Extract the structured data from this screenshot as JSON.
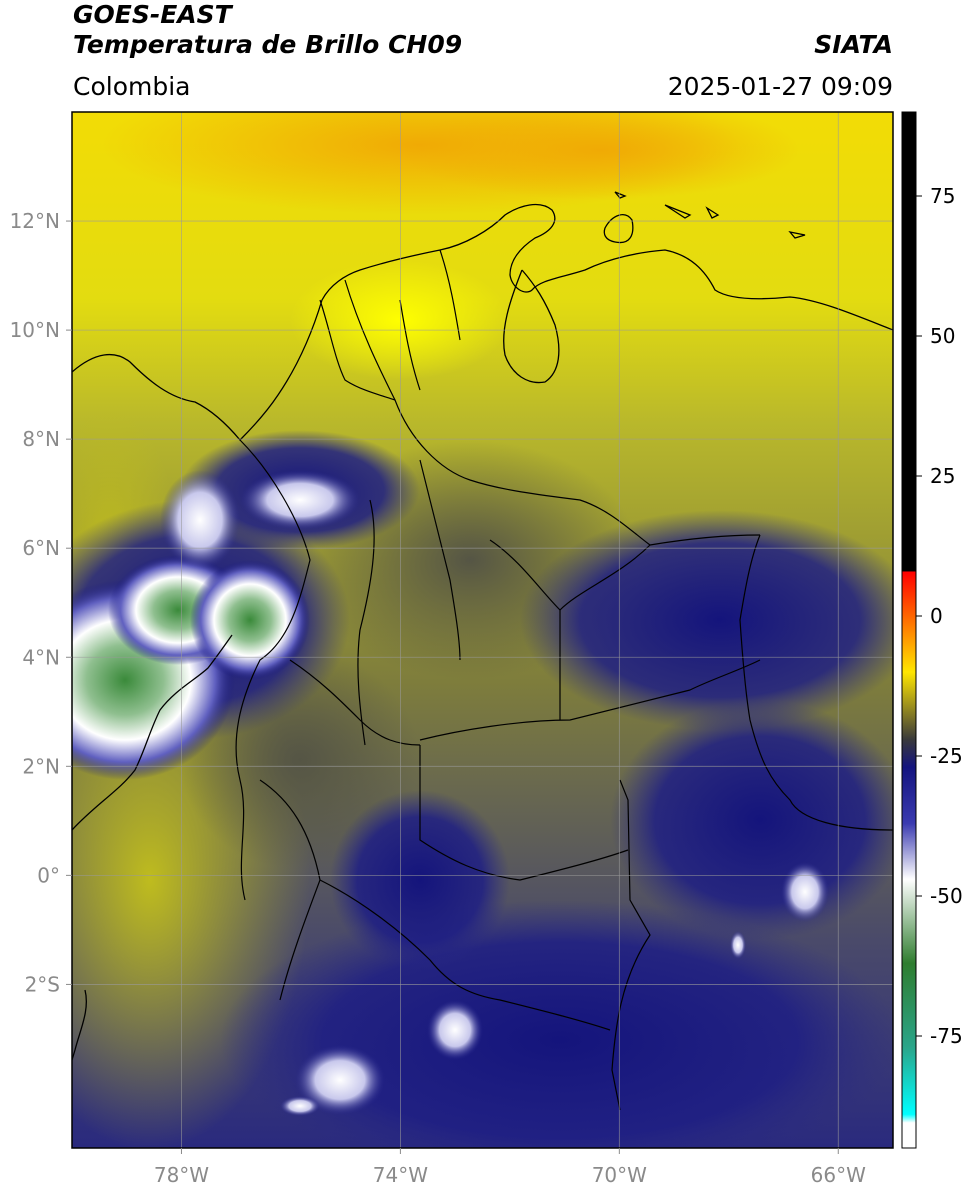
{
  "header": {
    "satellite": "GOES-EAST",
    "product": "Temperatura de Brillo CH09",
    "institution": "SIATA",
    "region": "Colombia",
    "datetime": "2025-01-27 09:09"
  },
  "map": {
    "lon_range": [
      -80,
      -65
    ],
    "lat_range": [
      -5,
      14
    ],
    "lon_ticks": [
      {
        "value": -78,
        "label": "78°W"
      },
      {
        "value": -74,
        "label": "74°W"
      },
      {
        "value": -70,
        "label": "70°W"
      },
      {
        "value": -66,
        "label": "66°W"
      }
    ],
    "lat_ticks": [
      {
        "value": 12,
        "label": "12°N"
      },
      {
        "value": 10,
        "label": "10°N"
      },
      {
        "value": 8,
        "label": "8°N"
      },
      {
        "value": 6,
        "label": "6°N"
      },
      {
        "value": 4,
        "label": "4°N"
      },
      {
        "value": 2,
        "label": "2°N"
      },
      {
        "value": 0,
        "label": "0°"
      },
      {
        "value": -2,
        "label": "2°S"
      }
    ],
    "gridlines": true
  },
  "colorbar": {
    "range": [
      -95,
      90
    ],
    "ticks": [
      {
        "value": 75,
        "label": "75"
      },
      {
        "value": 50,
        "label": "50"
      },
      {
        "value": 25,
        "label": "25"
      },
      {
        "value": 0,
        "label": "0"
      },
      {
        "value": -25,
        "label": "-25"
      },
      {
        "value": -50,
        "label": "-50"
      },
      {
        "value": -75,
        "label": "-75"
      }
    ],
    "stops": [
      {
        "value": 90,
        "color": "#000000"
      },
      {
        "value": 8,
        "color": "#000000"
      },
      {
        "value": 7.9,
        "color": "#ff0000"
      },
      {
        "value": -10,
        "color": "#ffe600"
      },
      {
        "value": -22,
        "color": "#3a3a3a"
      },
      {
        "value": -27,
        "color": "#14147f"
      },
      {
        "value": -37,
        "color": "#3a3ab0"
      },
      {
        "value": -47,
        "color": "#ffffff"
      },
      {
        "value": -62,
        "color": "#2f7d2f"
      },
      {
        "value": -77,
        "color": "#2aa58a"
      },
      {
        "value": -89,
        "color": "#00ffff"
      },
      {
        "value": -90.5,
        "color": "#ffffff"
      },
      {
        "value": -95,
        "color": "#ffffff"
      }
    ]
  }
}
